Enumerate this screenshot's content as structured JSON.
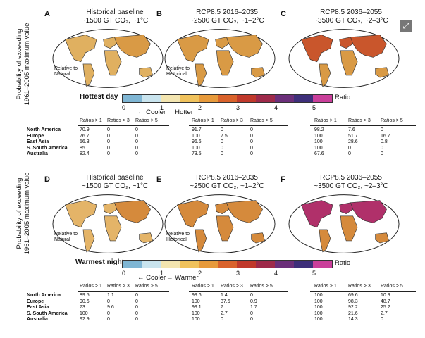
{
  "ylabel": "Probability of exceeding\n1961–2005 maximum value",
  "top": {
    "panels": [
      {
        "letter": "A",
        "title1": "Historical baseline",
        "title2": "~1500 GT CO₂, ~1°C",
        "note": "Relative to\nNatural"
      },
      {
        "letter": "B",
        "title1": "RCP8.5 2016–2035",
        "title2": "~2500 GT CO₂, ~1–2°C",
        "note": "Relative to\nHistorical"
      },
      {
        "letter": "C",
        "title1": "RCP8.5 2036–2055",
        "title2": "~3500 GT CO₂, ~2–3°C",
        "note": ""
      }
    ],
    "colorbar_title": "Hottest day",
    "ticks": [
      "0",
      "1",
      "2",
      "3",
      "4",
      "5"
    ],
    "ratio_label": "Ratio",
    "cool_label": "Cooler",
    "warm_label": "Hotter",
    "headers": [
      "Ratios > 1",
      "Ratios > 3",
      "Ratios > 5"
    ],
    "rows": [
      {
        "region": "North America",
        "v": [
          [
            "70.9",
            "0",
            "0"
          ],
          [
            "91.7",
            "0",
            "0"
          ],
          [
            "98.2",
            "7.6",
            "0"
          ]
        ]
      },
      {
        "region": "Europe",
        "v": [
          [
            "76.7",
            "0",
            "0"
          ],
          [
            "100",
            "7.5",
            "0"
          ],
          [
            "100",
            "51.7",
            "16.7"
          ]
        ]
      },
      {
        "region": "East Asia",
        "v": [
          [
            "56.3",
            "0",
            "0"
          ],
          [
            "96.6",
            "0",
            "0"
          ],
          [
            "100",
            "28.6",
            "0.8"
          ]
        ]
      },
      {
        "region": "S. South America",
        "v": [
          [
            "85",
            "0",
            "0"
          ],
          [
            "100",
            "0",
            "0"
          ],
          [
            "100",
            "0",
            "0"
          ]
        ]
      },
      {
        "region": "Australia",
        "v": [
          [
            "82.4",
            "0",
            "0"
          ],
          [
            "73.5",
            "0",
            "0"
          ],
          [
            "67.6",
            "0",
            "0"
          ]
        ]
      }
    ]
  },
  "bottom": {
    "panels": [
      {
        "letter": "D",
        "title1": "Historical baseline",
        "title2": "~1500 GT CO₂, ~1°C",
        "note": "Relative to\nNatural"
      },
      {
        "letter": "E",
        "title1": "RCP8.5 2016–2035",
        "title2": "~2500 GT CO₂, ~1–2°C",
        "note": "Relative to\nHistorical"
      },
      {
        "letter": "F",
        "title1": "RCP8.5 2036–2055",
        "title2": "~3500 GT CO₂, ~2–3°C",
        "note": ""
      }
    ],
    "colorbar_title": "Warmest night",
    "ticks": [
      "0",
      "1",
      "2",
      "3",
      "4",
      "5"
    ],
    "ratio_label": "Ratio",
    "cool_label": "Cooler",
    "warm_label": "Warmer",
    "headers": [
      "Ratios > 1",
      "Ratios > 3",
      "Ratios > 5"
    ],
    "rows": [
      {
        "region": "North America",
        "v": [
          [
            "89.5",
            "1.1",
            "0"
          ],
          [
            "99.6",
            "1.4",
            "0"
          ],
          [
            "100",
            "69.6",
            "10.9"
          ]
        ]
      },
      {
        "region": "Europe",
        "v": [
          [
            "90.6",
            "0",
            "0"
          ],
          [
            "100",
            "37.6",
            "0.9"
          ],
          [
            "100",
            "98.3",
            "48.7"
          ]
        ]
      },
      {
        "region": "East Asia",
        "v": [
          [
            "73",
            "9.6",
            "0"
          ],
          [
            "99.1",
            "7",
            "1.7"
          ],
          [
            "100",
            "92.2",
            "25.2"
          ]
        ]
      },
      {
        "region": "S. South America",
        "v": [
          [
            "100",
            "0",
            "0"
          ],
          [
            "100",
            "2.7",
            "0"
          ],
          [
            "100",
            "21.6",
            "2.7"
          ]
        ]
      },
      {
        "region": "Australia",
        "v": [
          [
            "92.9",
            "0",
            "0"
          ],
          [
            "100",
            "0",
            "0"
          ],
          [
            "100",
            "14.3",
            "0"
          ]
        ]
      }
    ]
  },
  "colors": {
    "scale": [
      "#7fb6d4",
      "#c9e4ee",
      "#f3e5b0",
      "#f0c25c",
      "#e79a3b",
      "#d9622b",
      "#c0392b",
      "#9e2a4a",
      "#6b2f7a",
      "#3e2f7a",
      "#c93f9a"
    ],
    "land_top": [
      "#e0b060",
      "#d99a45",
      "#c9562c"
    ],
    "land_bottom": [
      "#e4b468",
      "#d58a3c",
      "#b0306a"
    ]
  },
  "ui": {
    "expand_icon": "expand-icon"
  }
}
